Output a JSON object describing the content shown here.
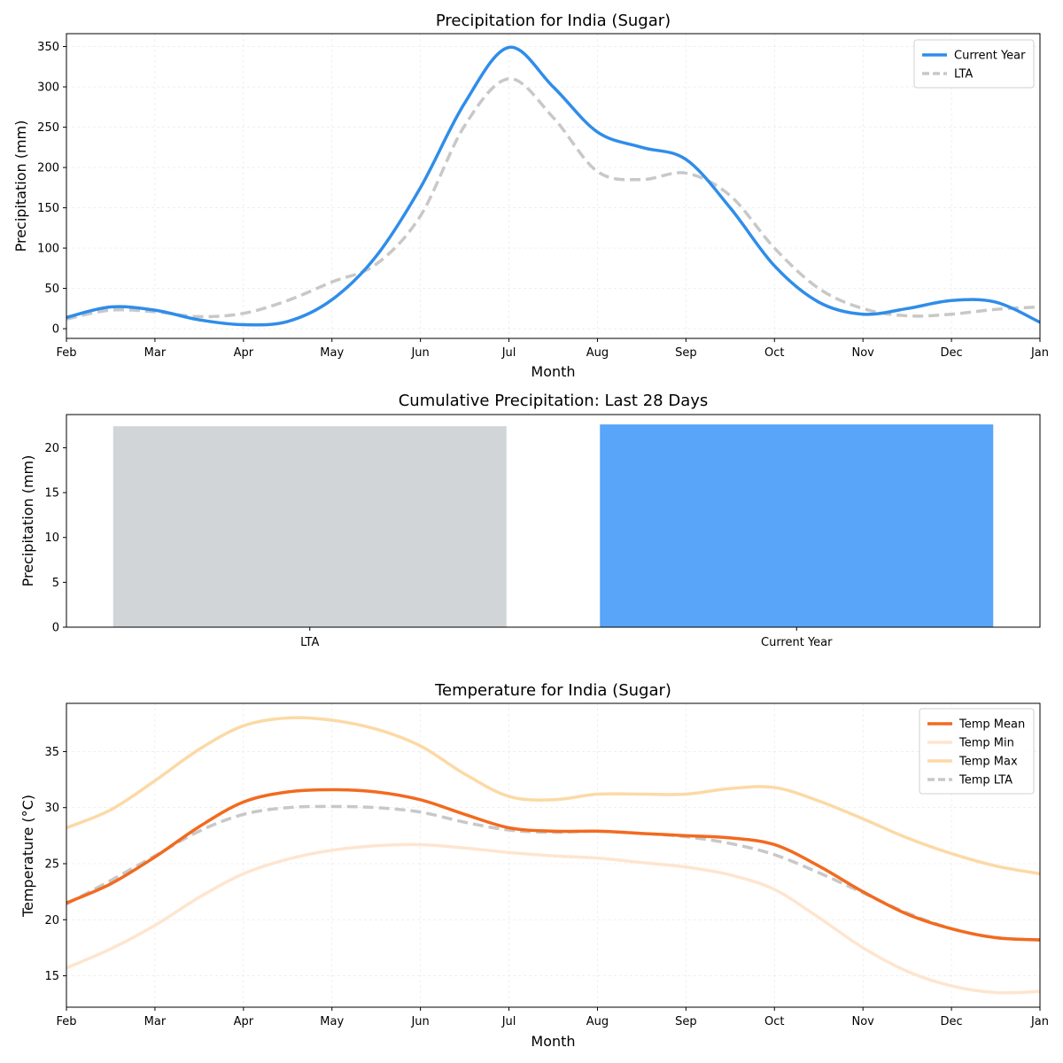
{
  "chart_data": [
    {
      "type": "line",
      "title": "Precipitation for India (Sugar)",
      "xlabel": "Month",
      "ylabel": "Precipitation (mm)",
      "x_ticks": [
        "Feb",
        "Mar",
        "Apr",
        "May",
        "Jun",
        "Jul",
        "Aug",
        "Sep",
        "Oct",
        "Nov",
        "Dec",
        "Jan"
      ],
      "ylim": [
        -12,
        366
      ],
      "y_ticks": [
        0,
        50,
        100,
        150,
        200,
        250,
        300,
        350
      ],
      "grid": true,
      "legend": "top-right",
      "series": [
        {
          "name": "Current Year",
          "color": "#2f8de9",
          "style": "solid",
          "points": [
            [
              0,
              14
            ],
            [
              0.5,
              27
            ],
            [
              1,
              23
            ],
            [
              1.5,
              11
            ],
            [
              2,
              5
            ],
            [
              2.5,
              9
            ],
            [
              3,
              36
            ],
            [
              3.5,
              90
            ],
            [
              4,
              175
            ],
            [
              4.5,
              280
            ],
            [
              5,
              349
            ],
            [
              5.5,
              300
            ],
            [
              6,
              244
            ],
            [
              6.5,
              225
            ],
            [
              7,
              210
            ],
            [
              7.5,
              150
            ],
            [
              8,
              78
            ],
            [
              8.5,
              33
            ],
            [
              9,
              18
            ],
            [
              9.5,
              25
            ],
            [
              10,
              35
            ],
            [
              10.5,
              33
            ],
            [
              11,
              8
            ]
          ]
        },
        {
          "name": "LTA",
          "color": "#c8c8c8",
          "style": "dashed",
          "points": [
            [
              0,
              12
            ],
            [
              0.5,
              23
            ],
            [
              1,
              21
            ],
            [
              1.5,
              15
            ],
            [
              2,
              19
            ],
            [
              2.5,
              35
            ],
            [
              3,
              58
            ],
            [
              3.5,
              80
            ],
            [
              4,
              140
            ],
            [
              4.5,
              252
            ],
            [
              5,
              310
            ],
            [
              5.5,
              262
            ],
            [
              6,
              195
            ],
            [
              6.5,
              185
            ],
            [
              7,
              193
            ],
            [
              7.5,
              165
            ],
            [
              8,
              100
            ],
            [
              8.5,
              50
            ],
            [
              9,
              25
            ],
            [
              9.5,
              16
            ],
            [
              10,
              18
            ],
            [
              10.5,
              24
            ],
            [
              11,
              27
            ]
          ]
        }
      ]
    },
    {
      "type": "bar",
      "title": "Cumulative Precipitation: Last 28 Days",
      "xlabel": "",
      "ylabel": "Precipitation (mm)",
      "categories": [
        "LTA",
        "Current Year"
      ],
      "values": [
        22.4,
        22.6
      ],
      "colors": [
        "#d1d5d8",
        "#58a5f9"
      ],
      "ylim": [
        0,
        23.7
      ],
      "y_ticks": [
        0,
        5,
        10,
        15,
        20
      ]
    },
    {
      "type": "line",
      "title": "Temperature for India (Sugar)",
      "xlabel": "Month",
      "ylabel": "Temperature (°C)",
      "x_ticks": [
        "Feb",
        "Mar",
        "Apr",
        "May",
        "Jun",
        "Jul",
        "Aug",
        "Sep",
        "Oct",
        "Nov",
        "Dec",
        "Jan"
      ],
      "ylim": [
        12.2,
        39.3
      ],
      "y_ticks": [
        15,
        20,
        25,
        30,
        35
      ],
      "grid": true,
      "legend": "top-right",
      "series": [
        {
          "name": "Temp Mean",
          "color": "#f26a1f",
          "style": "solid",
          "points": [
            [
              0,
              21.5
            ],
            [
              0.5,
              23.2
            ],
            [
              1,
              25.6
            ],
            [
              1.5,
              28.3
            ],
            [
              2,
              30.5
            ],
            [
              2.5,
              31.4
            ],
            [
              3,
              31.6
            ],
            [
              3.5,
              31.4
            ],
            [
              4,
              30.7
            ],
            [
              4.5,
              29.4
            ],
            [
              5,
              28.2
            ],
            [
              5.5,
              27.9
            ],
            [
              6,
              27.9
            ],
            [
              6.5,
              27.7
            ],
            [
              7,
              27.5
            ],
            [
              7.5,
              27.3
            ],
            [
              8,
              26.7
            ],
            [
              8.5,
              24.8
            ],
            [
              9,
              22.5
            ],
            [
              9.5,
              20.5
            ],
            [
              10,
              19.2
            ],
            [
              10.5,
              18.4
            ],
            [
              11,
              18.2
            ]
          ]
        },
        {
          "name": "Temp Min",
          "color": "#fee5cf",
          "style": "solid",
          "points": [
            [
              0,
              15.7
            ],
            [
              0.5,
              17.4
            ],
            [
              1,
              19.5
            ],
            [
              1.5,
              22.0
            ],
            [
              2,
              24.1
            ],
            [
              2.5,
              25.4
            ],
            [
              3,
              26.2
            ],
            [
              3.5,
              26.6
            ],
            [
              4,
              26.7
            ],
            [
              4.5,
              26.4
            ],
            [
              5,
              26.0
            ],
            [
              5.5,
              25.7
            ],
            [
              6,
              25.5
            ],
            [
              6.5,
              25.1
            ],
            [
              7,
              24.7
            ],
            [
              7.5,
              24.0
            ],
            [
              8,
              22.7
            ],
            [
              8.5,
              20.2
            ],
            [
              9,
              17.5
            ],
            [
              9.5,
              15.4
            ],
            [
              10,
              14.1
            ],
            [
              10.5,
              13.5
            ],
            [
              11,
              13.6
            ]
          ]
        },
        {
          "name": "Temp Max",
          "color": "#fcd9a5",
          "style": "solid",
          "points": [
            [
              0,
              28.2
            ],
            [
              0.5,
              29.8
            ],
            [
              1,
              32.4
            ],
            [
              1.5,
              35.2
            ],
            [
              2,
              37.3
            ],
            [
              2.5,
              38.0
            ],
            [
              3,
              37.8
            ],
            [
              3.5,
              37.0
            ],
            [
              4,
              35.5
            ],
            [
              4.5,
              33.0
            ],
            [
              5,
              31.0
            ],
            [
              5.5,
              30.7
            ],
            [
              6,
              31.2
            ],
            [
              6.5,
              31.2
            ],
            [
              7,
              31.2
            ],
            [
              7.5,
              31.7
            ],
            [
              8,
              31.8
            ],
            [
              8.5,
              30.6
            ],
            [
              9,
              29.0
            ],
            [
              9.5,
              27.3
            ],
            [
              10,
              25.9
            ],
            [
              10.5,
              24.8
            ],
            [
              11,
              24.1
            ]
          ]
        },
        {
          "name": "Temp LTA",
          "color": "#c8c8c8",
          "style": "dashed",
          "points": [
            [
              0,
              21.4
            ],
            [
              0.5,
              23.5
            ],
            [
              1,
              25.7
            ],
            [
              1.5,
              27.9
            ],
            [
              2,
              29.4
            ],
            [
              2.5,
              30.0
            ],
            [
              3,
              30.1
            ],
            [
              3.5,
              30.0
            ],
            [
              4,
              29.6
            ],
            [
              4.5,
              28.7
            ],
            [
              5,
              28.0
            ],
            [
              5.5,
              27.8
            ],
            [
              6,
              27.9
            ],
            [
              6.5,
              27.7
            ],
            [
              7,
              27.4
            ],
            [
              7.5,
              26.8
            ],
            [
              8,
              25.8
            ],
            [
              8.5,
              24.2
            ],
            [
              9,
              22.4
            ],
            [
              9.5,
              20.6
            ],
            [
              10,
              19.2
            ],
            [
              10.5,
              18.4
            ],
            [
              11,
              18.2
            ]
          ]
        }
      ]
    }
  ]
}
